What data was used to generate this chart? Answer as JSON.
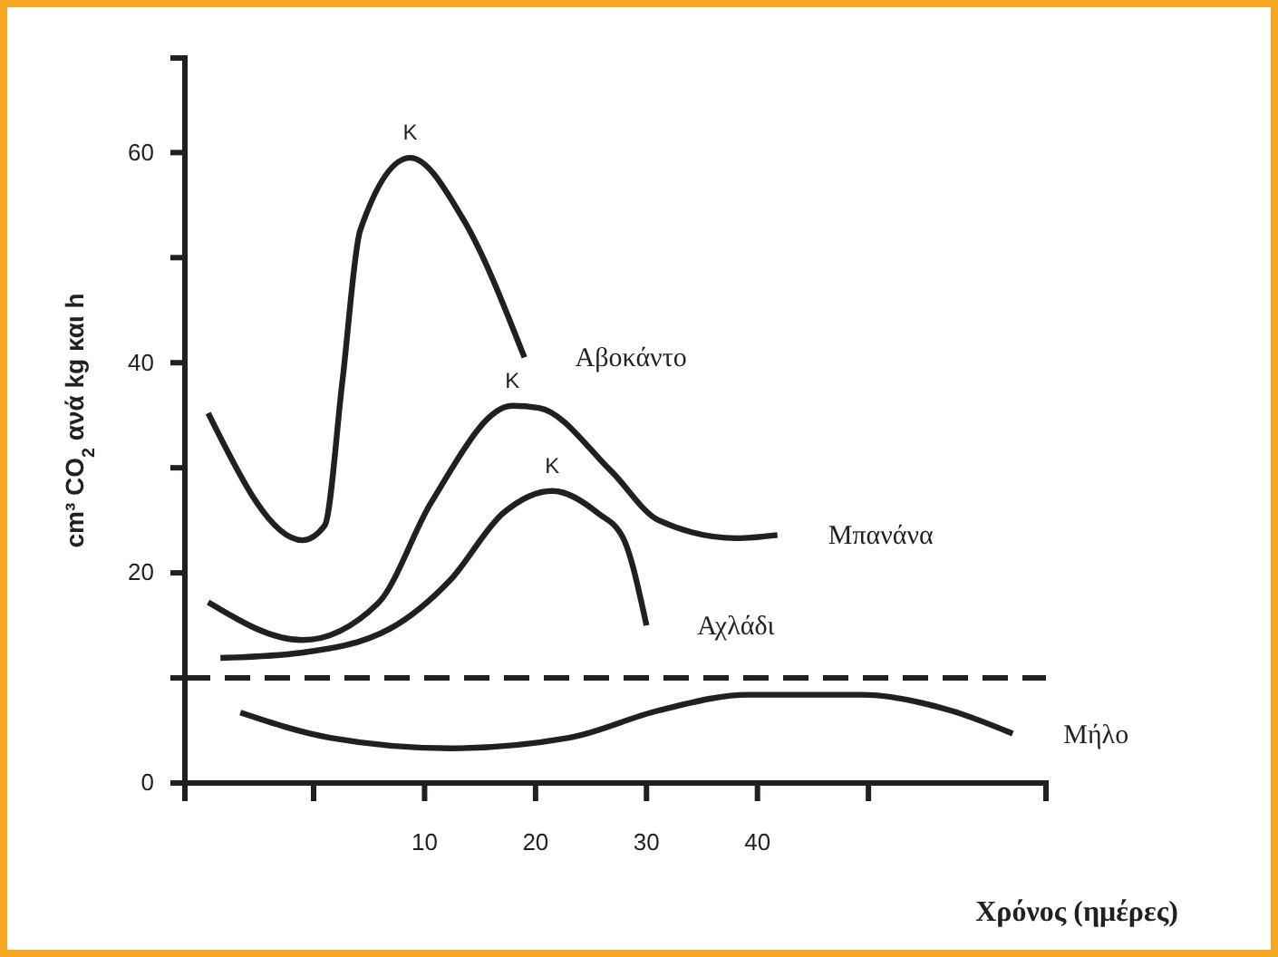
{
  "chart_data": {
    "type": "line",
    "xlabel": "Χρόνος (ημέρες)",
    "ylabel": "cm³ CO$_{2}$ ανά kg και h",
    "xlim": [
      -11.6,
      66
    ],
    "xticks": [
      {
        "value": 0,
        "label": null
      },
      10,
      20,
      30,
      40,
      {
        "value": 50,
        "label": null
      }
    ],
    "ylim": [
      0,
      69
    ],
    "yticks": [
      0,
      {
        "value": 10,
        "label": null
      },
      20,
      {
        "value": 30,
        "label": null
      },
      40,
      {
        "value": 50,
        "label": null
      },
      60
    ],
    "grid": false,
    "legend": false,
    "marker": "none",
    "line_style": "solid",
    "series": [
      {
        "name": "Αβοκάντο",
        "color": "#231f20",
        "x": [
          -9.5,
          -1,
          1,
          2.6,
          4.2,
          8.7,
          13.4,
          19
        ],
        "values": [
          35.2,
          23.1,
          24.5,
          38.3,
          52.6,
          59.5,
          53.8,
          40.5
        ]
      },
      {
        "name": "Μπανάνα",
        "color": "#231f20",
        "x": [
          -9.5,
          -1,
          5.8,
          10.6,
          17.9,
          20.3,
          26.8,
          31.1,
          38.1,
          41.8
        ],
        "values": [
          17.2,
          13.6,
          17.1,
          26.7,
          35.9,
          35.7,
          29.7,
          25,
          23.3,
          23.6
        ]
      },
      {
        "name": "Αχλάδι",
        "color": "#231f20",
        "x": [
          -8.4,
          -1.1,
          6.9,
          12.3,
          17.1,
          21.5,
          25.6,
          27.9,
          30
        ],
        "values": [
          11.9,
          12.4,
          14.7,
          19.3,
          25.7,
          27.8,
          25.7,
          23.3,
          15
        ]
      },
      {
        "name": "Μήλο",
        "color": "#231f20",
        "x": [
          -6.6,
          1.5,
          12.3,
          23,
          31.1,
          39.2,
          49.4,
          57.4,
          63
        ],
        "values": [
          6.7,
          4.3,
          3.3,
          4.3,
          6.9,
          8.4,
          8.4,
          6.9,
          4.7
        ]
      }
    ],
    "ref_lines": [
      {
        "axis": "y",
        "value": 10,
        "line_style": "dashed",
        "color": "#231f20"
      }
    ],
    "annotations": [
      {
        "text": "Κ",
        "x": 8.7,
        "y": 59.5
      },
      {
        "text": "Κ",
        "x": 17.9,
        "y": 35.9
      },
      {
        "text": "Κ",
        "x": 21.5,
        "y": 27.8
      }
    ]
  }
}
